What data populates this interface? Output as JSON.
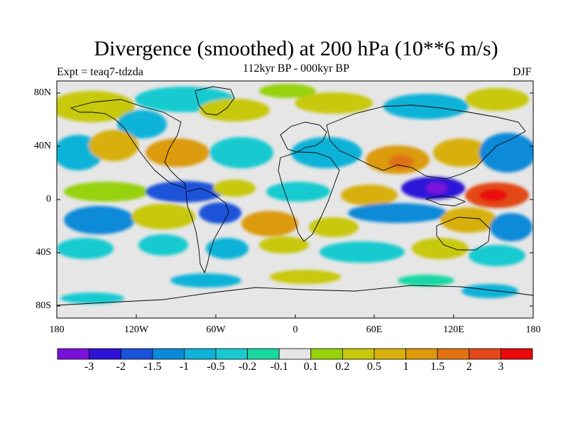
{
  "title": "Divergence (smoothed) at 200 hPa (10**6 m/s)",
  "subtitle": "112kyr BP - 000kyr BP",
  "experiment_label": "Expt = teaq7-tdzda",
  "season_label": "DJF",
  "axes": {
    "lat_labels": [
      "80N",
      "40N",
      "0",
      "40S",
      "80S"
    ],
    "lon_labels": [
      "180",
      "120W",
      "60W",
      "0",
      "60E",
      "120E",
      "180"
    ]
  },
  "colorbar": {
    "colors": [
      "#7a12dc",
      "#2f12d8",
      "#1a52d8",
      "#0a8ad8",
      "#10b2d8",
      "#18cad0",
      "#18d8a0",
      "#e6e6e6",
      "#96d20a",
      "#c8c80a",
      "#d8b00a",
      "#dc9a0a",
      "#e07212",
      "#e24818",
      "#ea0a0a"
    ],
    "labels": [
      "-3",
      "-2",
      "-1.5",
      "-1",
      "-0.5",
      "-0.2",
      "-0.1",
      "0.1",
      "0.2",
      "0.5",
      "1",
      "1.5",
      "2",
      "3"
    ]
  },
  "map_regions": {
    "background": "#e6e6e6",
    "coastline": "#000000"
  }
}
